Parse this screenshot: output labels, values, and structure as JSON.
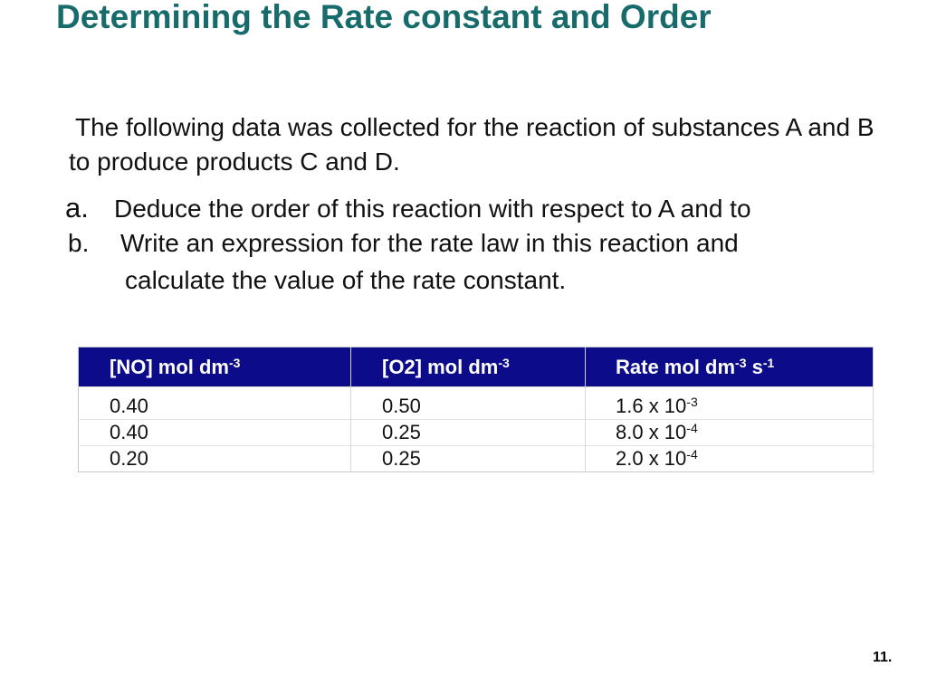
{
  "slide": {
    "title": "Determining the Rate constant and Order",
    "intro": "The following data was collected for the reaction of substances A and B to produce products C and D.",
    "questions": [
      {
        "marker": "a.",
        "text": "Deduce the order of this reaction with respect to A and to"
      },
      {
        "marker": "b.",
        "text": "Write an expression for the rate law in this reaction and",
        "continuation": "calculate the value of the rate constant."
      }
    ],
    "page_number": "11."
  },
  "table": {
    "header_color": "#0C0C8A",
    "headers": [
      {
        "label": "[NO]  mol dm",
        "sup": "-3",
        "label2": "",
        "sup2": ""
      },
      {
        "label": "[O2] mol dm",
        "sup": "-3",
        "label2": "",
        "sup2": ""
      },
      {
        "label": "Rate mol dm",
        "sup": "-3",
        "label2": " s",
        "sup2": "-1"
      }
    ],
    "rows": [
      {
        "no": "0.40",
        "o2": "0.50",
        "rate": "1.6  x 10",
        "rate_exp": "-3"
      },
      {
        "no": "0.40",
        "o2": "0.25",
        "rate": "8.0 x 10",
        "rate_exp": "-4"
      },
      {
        "no": "0.20",
        "o2": "0.25",
        "rate": "2.0 x 10",
        "rate_exp": "-4"
      }
    ]
  }
}
